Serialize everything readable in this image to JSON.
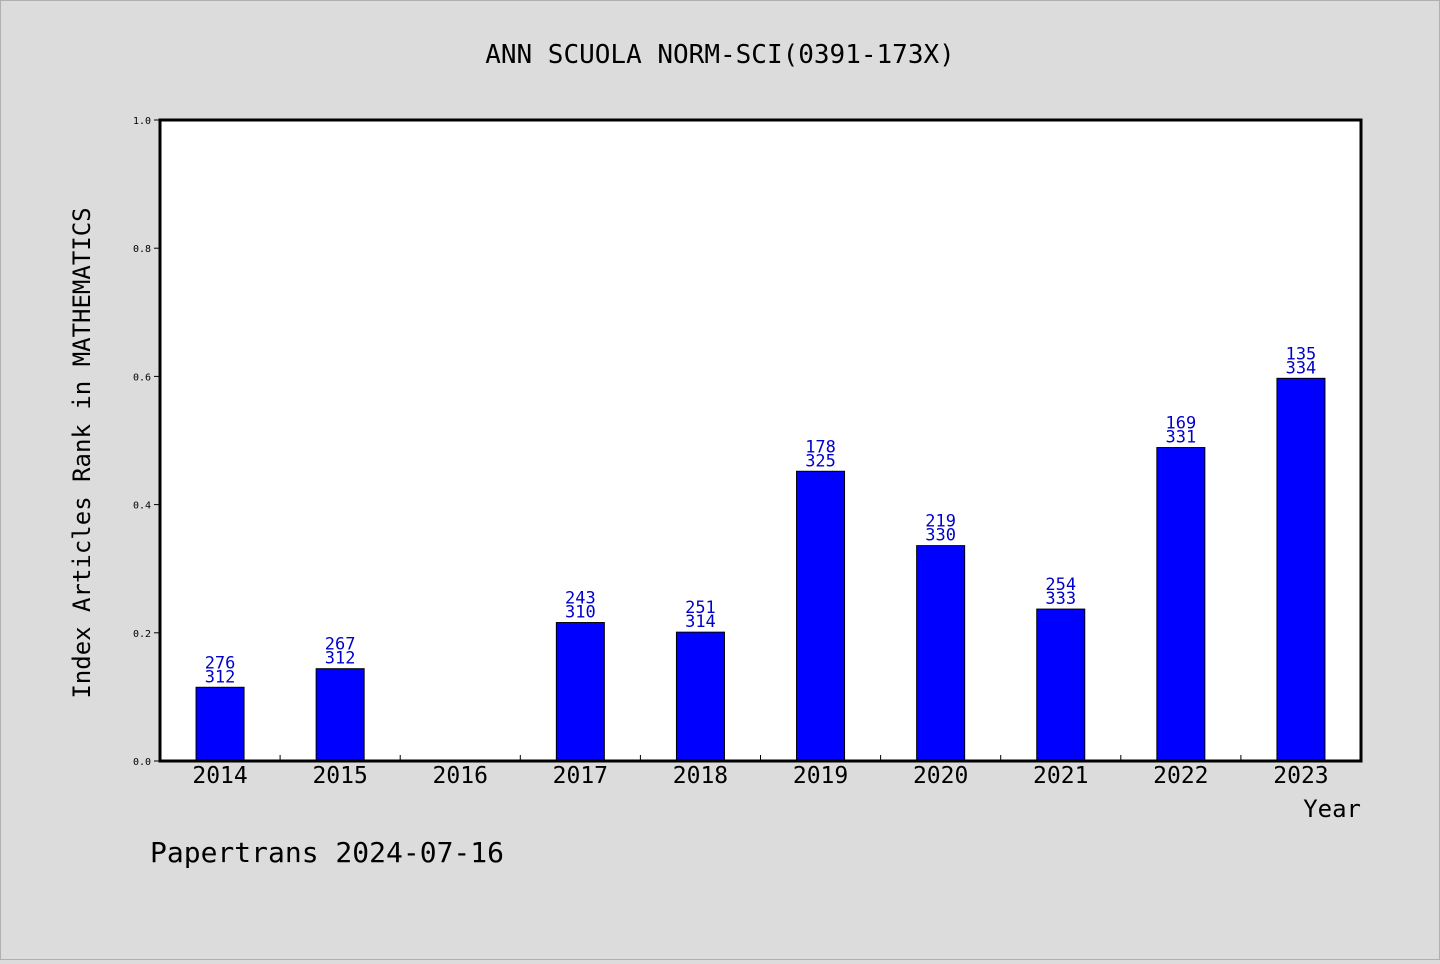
{
  "chart_data": {
    "type": "bar",
    "title": "ANN SCUOLA NORM-SCI(0391-173X)",
    "xlabel": "Year",
    "ylabel": "Index Articles Rank in MATHEMATICS",
    "categories": [
      "2014",
      "2015",
      "2016",
      "2017",
      "2018",
      "2019",
      "2020",
      "2021",
      "2022",
      "2023"
    ],
    "values": [
      0.115,
      0.144,
      null,
      0.216,
      0.201,
      0.452,
      0.336,
      0.237,
      0.489,
      0.597
    ],
    "data_labels_top": [
      "276",
      "267",
      "",
      "243",
      "251",
      "178",
      "219",
      "254",
      "169",
      "135"
    ],
    "data_labels_bottom": [
      "312",
      "312",
      "",
      "310",
      "314",
      "325",
      "330",
      "333",
      "331",
      "334"
    ],
    "ylim": [
      0,
      1.0
    ],
    "yticks": [
      "0.0",
      "0.2",
      "0.4",
      "0.6",
      "0.8",
      "1.0"
    ],
    "ytick_values": [
      0,
      0.2,
      0.4,
      0.6,
      0.8,
      1.0
    ],
    "grid": false,
    "bar_color": "#0000ff",
    "label_color": "#0000cc",
    "background": "#dcdcdc",
    "plot_background": "#ffffff"
  },
  "footer": {
    "text": "Papertrans 2024-07-16"
  }
}
